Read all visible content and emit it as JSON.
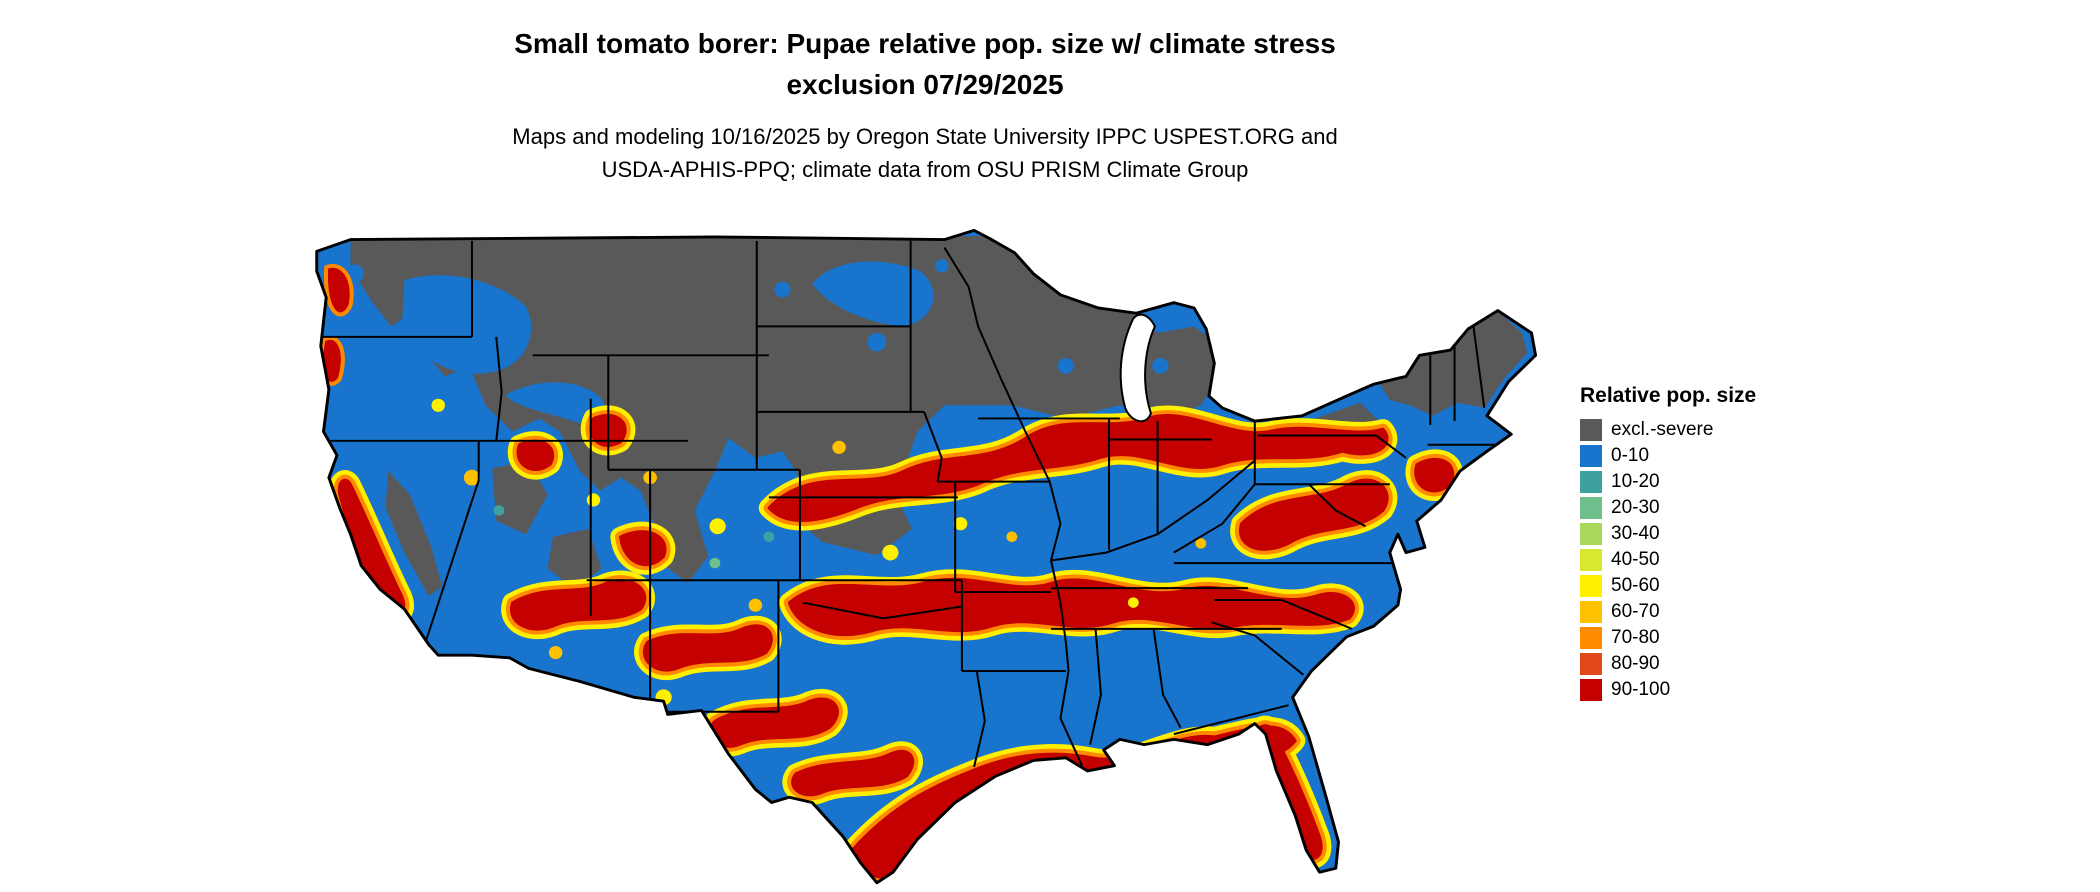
{
  "title": {
    "line1": "Small tomato borer: Pupae relative pop. size w/ climate stress",
    "line2": "exclusion 07/29/2025"
  },
  "subtitle": {
    "line1": "Maps and modeling 10/16/2025 by Oregon State University IPPC USPEST.ORG and",
    "line2": "USDA-APHIS-PPQ; climate data from OSU PRISM Climate Group"
  },
  "map": {
    "region": "Contiguous United States",
    "species": "Small tomato borer",
    "lifestage": "Pupae",
    "metric": "Relative pop. size w/ climate stress exclusion",
    "map_date": "07/29/2025",
    "model_run_date": "10/16/2025"
  },
  "legend": {
    "title": "Relative pop. size",
    "items": [
      {
        "label": "excl.-severe",
        "color": "#595959"
      },
      {
        "label": "0-10",
        "color": "#1874CD"
      },
      {
        "label": "10-20",
        "color": "#3FA0A0"
      },
      {
        "label": "20-30",
        "color": "#6FBE8C"
      },
      {
        "label": "30-40",
        "color": "#A9D75C"
      },
      {
        "label": "40-50",
        "color": "#D8E830"
      },
      {
        "label": "50-60",
        "color": "#FFF000"
      },
      {
        "label": "60-70",
        "color": "#FFC000"
      },
      {
        "label": "70-80",
        "color": "#FF8A00"
      },
      {
        "label": "80-90",
        "color": "#E2491A"
      },
      {
        "label": "90-100",
        "color": "#C40000"
      }
    ]
  }
}
